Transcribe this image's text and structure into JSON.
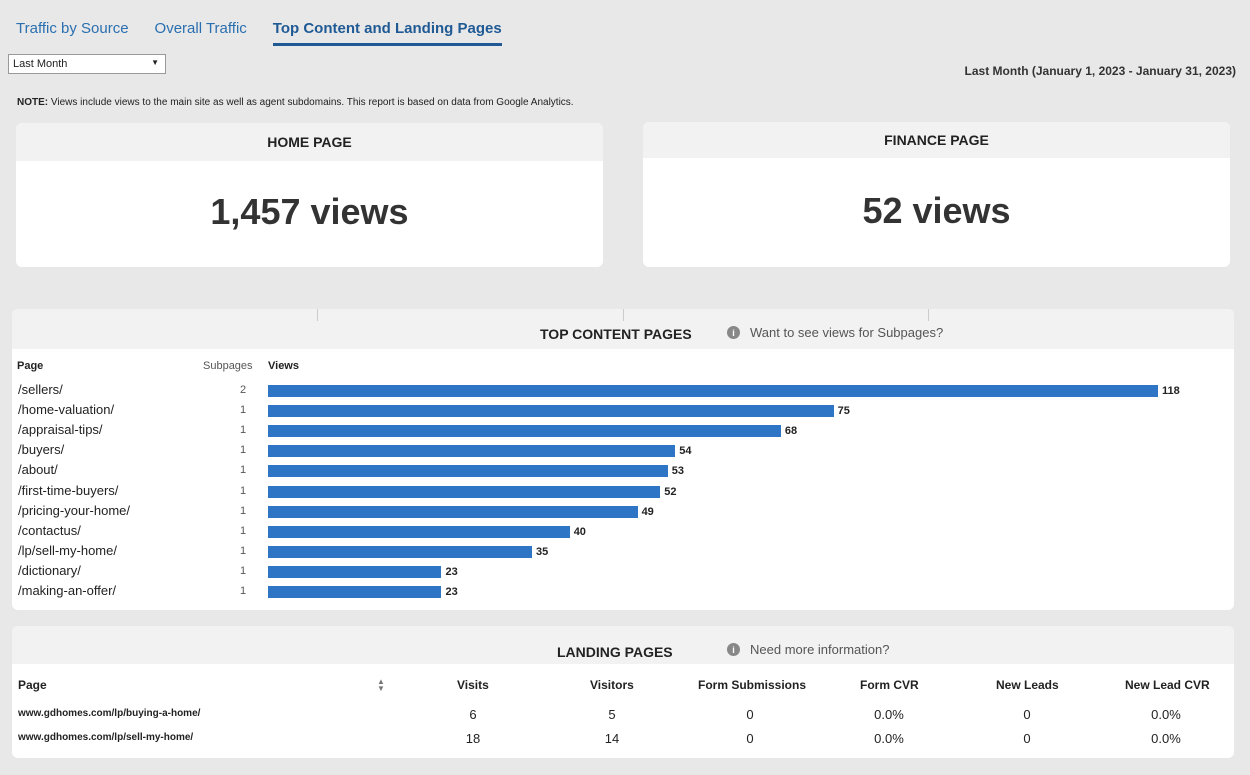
{
  "tabs": [
    {
      "label": "Traffic by Source",
      "active": false
    },
    {
      "label": "Overall Traffic",
      "active": false
    },
    {
      "label": "Top Content and Landing Pages",
      "active": true
    }
  ],
  "period_select": {
    "value": "Last Month"
  },
  "date_range": "Last Month (January 1, 2023 - January 31, 2023)",
  "note": {
    "prefix": "NOTE:",
    "text": " Views include views to the main site as well as agent subdomains. This report is based on data from Google Analytics."
  },
  "kpis": {
    "home": {
      "title": "HOME PAGE",
      "value": "1,457 views"
    },
    "finance": {
      "title": "FINANCE PAGE",
      "value": "52 views"
    }
  },
  "top_content": {
    "title": "TOP CONTENT PAGES",
    "info_link": "Want to see views for Subpages?",
    "columns": {
      "page": "Page",
      "subpages": "Subpages",
      "views": "Views"
    },
    "rows": [
      {
        "page": "/sellers/",
        "subpages": "2",
        "views": "118"
      },
      {
        "page": "/home-valuation/",
        "subpages": "1",
        "views": "75"
      },
      {
        "page": "/appraisal-tips/",
        "subpages": "1",
        "views": "68"
      },
      {
        "page": "/buyers/",
        "subpages": "1",
        "views": "54"
      },
      {
        "page": "/about/",
        "subpages": "1",
        "views": "53"
      },
      {
        "page": "/first-time-buyers/",
        "subpages": "1",
        "views": "52"
      },
      {
        "page": "/pricing-your-home/",
        "subpages": "1",
        "views": "49"
      },
      {
        "page": "/contactus/",
        "subpages": "1",
        "views": "40"
      },
      {
        "page": "/lp/sell-my-home/",
        "subpages": "1",
        "views": "35"
      },
      {
        "page": "/dictionary/",
        "subpages": "1",
        "views": "23"
      },
      {
        "page": "/making-an-offer/",
        "subpages": "1",
        "views": "23"
      }
    ],
    "bar_color": "#2e75c6"
  },
  "chart_data": {
    "type": "bar",
    "orientation": "horizontal",
    "categories": [
      "/sellers/",
      "/home-valuation/",
      "/appraisal-tips/",
      "/buyers/",
      "/about/",
      "/first-time-buyers/",
      "/pricing-your-home/",
      "/contactus/",
      "/lp/sell-my-home/",
      "/dictionary/",
      "/making-an-offer/"
    ],
    "values": [
      118,
      75,
      68,
      54,
      53,
      52,
      49,
      40,
      35,
      23,
      23
    ],
    "title": "TOP CONTENT PAGES",
    "xlabel": "Views",
    "ylabel": "Page"
  },
  "landing_pages": {
    "title": "LANDING PAGES",
    "info_link": "Need more information?",
    "columns": [
      "Page",
      "Visits",
      "Visitors",
      "Form Submissions",
      "Form CVR",
      "New Leads",
      "New Lead CVR"
    ],
    "rows": [
      {
        "page": "www.gdhomes.com/lp/buying-a-home/",
        "visits": "6",
        "visitors": "5",
        "form_submissions": "0",
        "form_cvr": "0.0%",
        "new_leads": "0",
        "new_lead_cvr": "0.0%"
      },
      {
        "page": "www.gdhomes.com/lp/sell-my-home/",
        "visits": "18",
        "visitors": "14",
        "form_submissions": "0",
        "form_cvr": "0.0%",
        "new_leads": "0",
        "new_lead_cvr": "0.0%"
      }
    ]
  }
}
